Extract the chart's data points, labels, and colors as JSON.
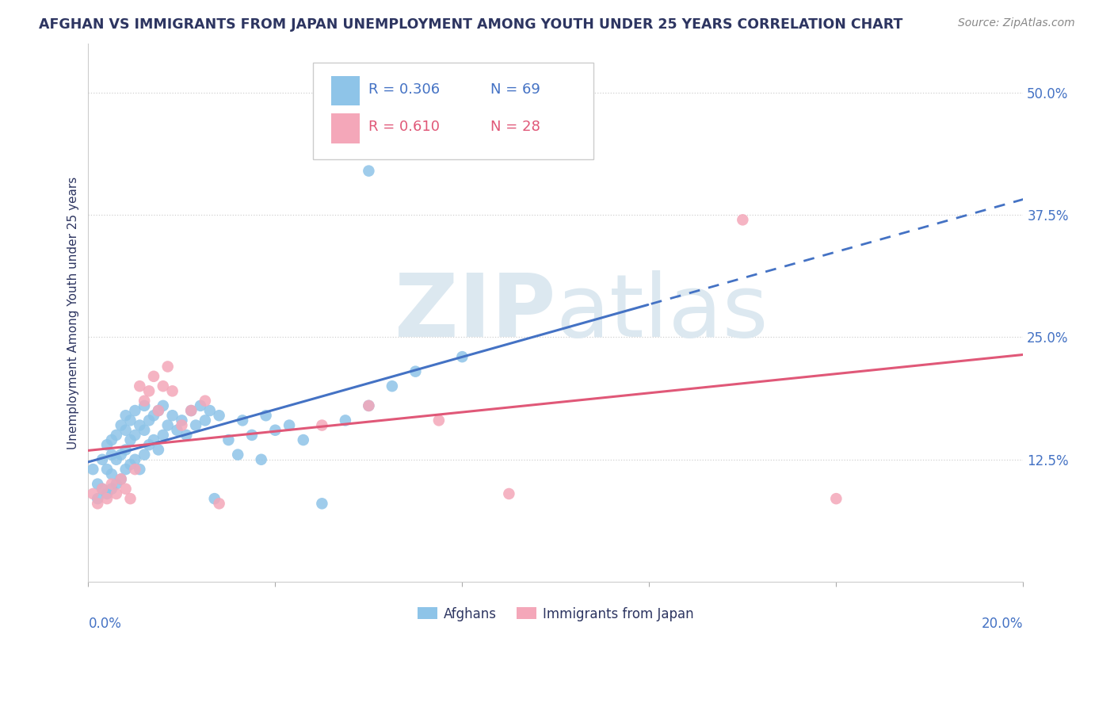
{
  "title": "AFGHAN VS IMMIGRANTS FROM JAPAN UNEMPLOYMENT AMONG YOUTH UNDER 25 YEARS CORRELATION CHART",
  "source": "Source: ZipAtlas.com",
  "ylabel": "Unemployment Among Youth under 25 years",
  "ytick_labels": [
    "12.5%",
    "25.0%",
    "37.5%",
    "50.0%"
  ],
  "ytick_values": [
    0.125,
    0.25,
    0.375,
    0.5
  ],
  "xlim": [
    0.0,
    0.2
  ],
  "ylim": [
    0.0,
    0.55
  ],
  "r1": "0.306",
  "n1": "69",
  "r2": "0.610",
  "n2": "28",
  "legend_label1": "Afghans",
  "legend_label2": "Immigrants from Japan",
  "color_blue": "#8ec4e8",
  "color_pink": "#f4a7b9",
  "color_blue_line": "#4472c4",
  "color_pink_line": "#e05878",
  "color_blue_text": "#4472c4",
  "color_pink_text": "#e05878",
  "title_color": "#2d3561",
  "source_color": "#888888",
  "axis_label_color": "#4472c4",
  "grid_color": "#cccccc",
  "watermark_text": "ZIPatlas",
  "watermark_color": "#dce8f0",
  "afghans_x": [
    0.001,
    0.002,
    0.002,
    0.003,
    0.003,
    0.004,
    0.004,
    0.004,
    0.005,
    0.005,
    0.005,
    0.005,
    0.006,
    0.006,
    0.006,
    0.007,
    0.007,
    0.007,
    0.008,
    0.008,
    0.008,
    0.008,
    0.009,
    0.009,
    0.009,
    0.01,
    0.01,
    0.01,
    0.011,
    0.011,
    0.012,
    0.012,
    0.012,
    0.013,
    0.013,
    0.014,
    0.014,
    0.015,
    0.015,
    0.016,
    0.016,
    0.017,
    0.018,
    0.019,
    0.02,
    0.021,
    0.022,
    0.023,
    0.024,
    0.025,
    0.026,
    0.027,
    0.028,
    0.03,
    0.032,
    0.033,
    0.035,
    0.037,
    0.038,
    0.04,
    0.043,
    0.046,
    0.05,
    0.055,
    0.06,
    0.065,
    0.07,
    0.08,
    0.06
  ],
  "afghans_y": [
    0.115,
    0.085,
    0.1,
    0.095,
    0.125,
    0.09,
    0.115,
    0.14,
    0.095,
    0.11,
    0.13,
    0.145,
    0.1,
    0.125,
    0.15,
    0.105,
    0.13,
    0.16,
    0.115,
    0.135,
    0.155,
    0.17,
    0.12,
    0.145,
    0.165,
    0.125,
    0.15,
    0.175,
    0.115,
    0.16,
    0.13,
    0.155,
    0.18,
    0.14,
    0.165,
    0.145,
    0.17,
    0.135,
    0.175,
    0.15,
    0.18,
    0.16,
    0.17,
    0.155,
    0.165,
    0.15,
    0.175,
    0.16,
    0.18,
    0.165,
    0.175,
    0.085,
    0.17,
    0.145,
    0.13,
    0.165,
    0.15,
    0.125,
    0.17,
    0.155,
    0.16,
    0.145,
    0.08,
    0.165,
    0.18,
    0.2,
    0.215,
    0.23,
    0.42
  ],
  "japan_x": [
    0.001,
    0.002,
    0.003,
    0.004,
    0.005,
    0.006,
    0.007,
    0.008,
    0.009,
    0.01,
    0.011,
    0.012,
    0.013,
    0.014,
    0.015,
    0.016,
    0.017,
    0.018,
    0.02,
    0.022,
    0.025,
    0.028,
    0.05,
    0.06,
    0.075,
    0.09,
    0.14,
    0.16
  ],
  "japan_y": [
    0.09,
    0.08,
    0.095,
    0.085,
    0.1,
    0.09,
    0.105,
    0.095,
    0.085,
    0.115,
    0.2,
    0.185,
    0.195,
    0.21,
    0.175,
    0.2,
    0.22,
    0.195,
    0.16,
    0.175,
    0.185,
    0.08,
    0.16,
    0.18,
    0.165,
    0.09,
    0.37,
    0.085
  ],
  "cutoff_solid_blue": 0.12
}
